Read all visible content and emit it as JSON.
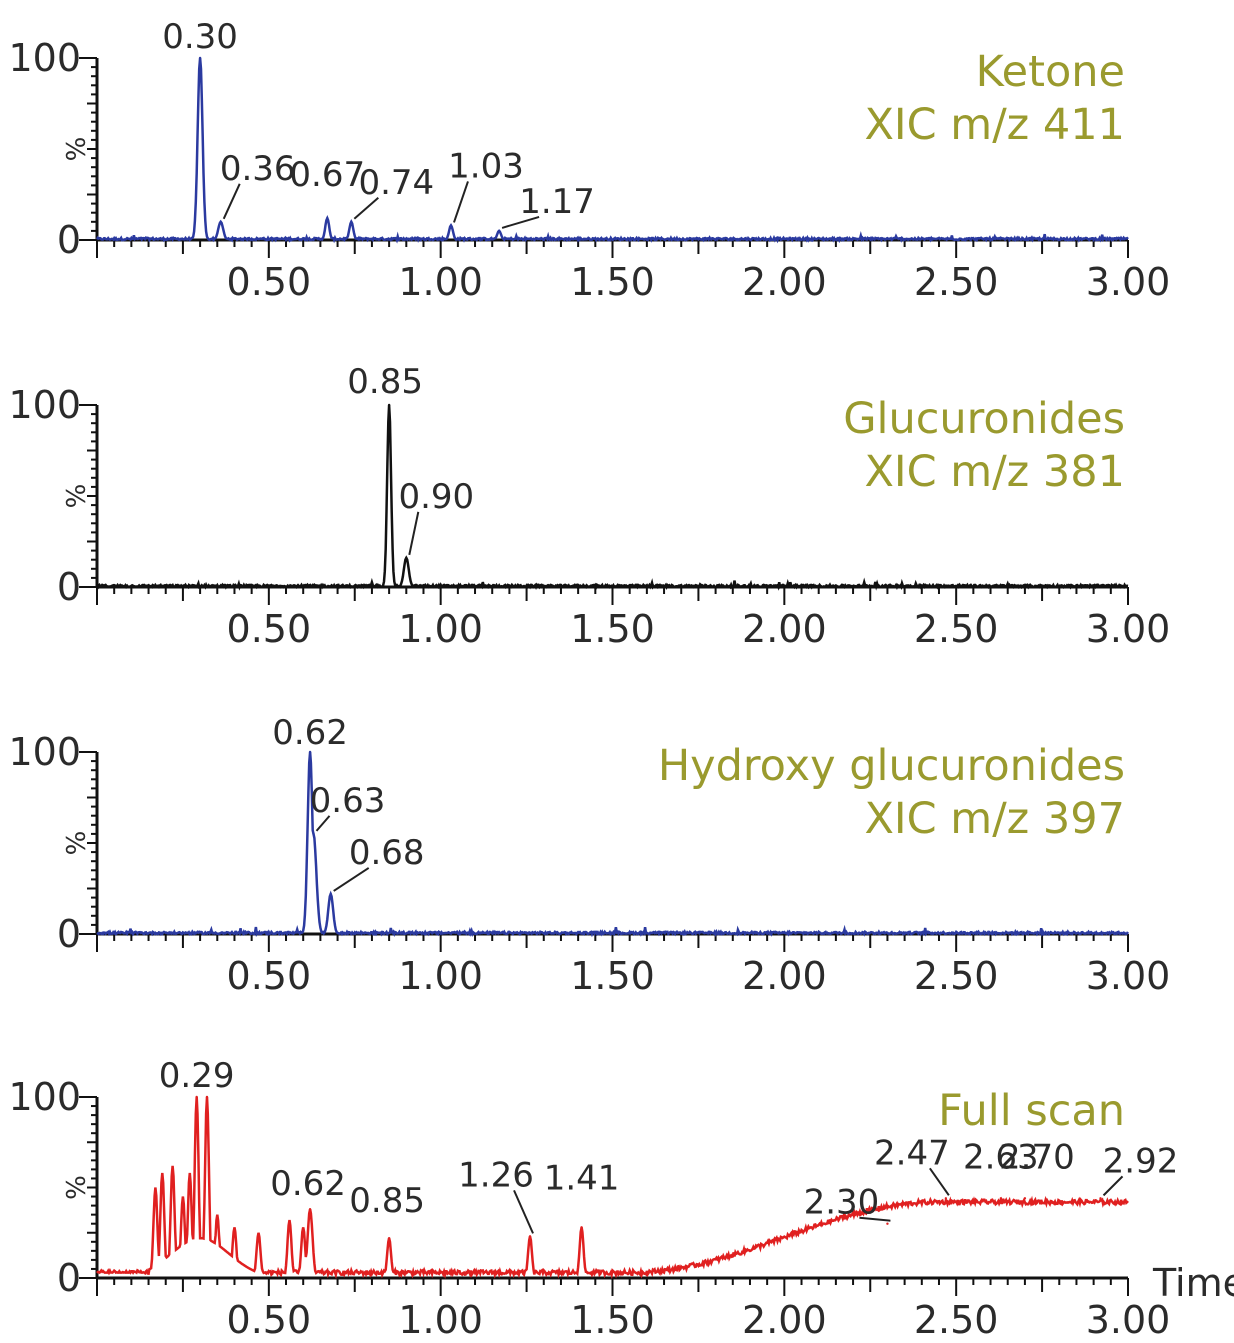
{
  "chart_data": [
    {
      "type": "line",
      "title": "Ketone",
      "subtitle": "XIC m/z 411",
      "color": "#2b3aa0",
      "xlim": [
        0.0,
        3.0
      ],
      "ylim": [
        0,
        100
      ],
      "x_ticks": [
        "0.50",
        "1.00",
        "1.50",
        "2.00",
        "2.50",
        "3.00"
      ],
      "y_ticks": [
        "100",
        "0"
      ],
      "ylabel": "%",
      "xlabel": "",
      "peaks": [
        {
          "x": 0.3,
          "y": 100,
          "width": 0.01,
          "label": "0.30"
        },
        {
          "x": 0.36,
          "y": 10,
          "width": 0.01,
          "label": "0.36"
        },
        {
          "x": 0.67,
          "y": 12,
          "width": 0.008,
          "label": "0.67"
        },
        {
          "x": 0.74,
          "y": 10,
          "width": 0.008,
          "label": "0.74"
        },
        {
          "x": 1.03,
          "y": 8,
          "width": 0.008,
          "label": "1.03"
        },
        {
          "x": 1.17,
          "y": 5,
          "width": 0.008,
          "label": "1.17"
        }
      ]
    },
    {
      "type": "line",
      "title": "Glucuronides",
      "subtitle": "XIC m/z 381",
      "color": "#111111",
      "xlim": [
        0.0,
        3.0
      ],
      "ylim": [
        0,
        100
      ],
      "x_ticks": [
        "0.50",
        "1.00",
        "1.50",
        "2.00",
        "2.50",
        "3.00"
      ],
      "y_ticks": [
        "100",
        "0"
      ],
      "ylabel": "%",
      "xlabel": "",
      "peaks": [
        {
          "x": 0.85,
          "y": 100,
          "width": 0.008,
          "label": "0.85"
        },
        {
          "x": 0.9,
          "y": 16,
          "width": 0.01,
          "label": "0.90"
        }
      ]
    },
    {
      "type": "line",
      "title": "Hydroxy glucuronides",
      "subtitle": "XIC m/z 397",
      "color": "#2b3aa0",
      "xlim": [
        0.0,
        3.0
      ],
      "ylim": [
        0,
        100
      ],
      "x_ticks": [
        "0.50",
        "1.00",
        "1.50",
        "2.00",
        "2.50",
        "3.00"
      ],
      "y_ticks": [
        "100",
        "0"
      ],
      "ylabel": "%",
      "xlabel": "",
      "peaks": [
        {
          "x": 0.62,
          "y": 100,
          "width": 0.01,
          "label": "0.62"
        },
        {
          "x": 0.63,
          "y": 55,
          "width": 0.012,
          "label": "0.63"
        },
        {
          "x": 0.68,
          "y": 22,
          "width": 0.01,
          "label": "0.68"
        }
      ]
    },
    {
      "type": "line",
      "title": "Full scan",
      "subtitle": "",
      "color": "#e02020",
      "xlim": [
        0.0,
        3.0
      ],
      "ylim": [
        0,
        100
      ],
      "x_ticks": [
        "0.50",
        "1.00",
        "1.50",
        "2.00",
        "2.50",
        "3.00"
      ],
      "y_ticks": [
        "100",
        "0"
      ],
      "ylabel": "%",
      "xlabel": "Time",
      "peaks": [
        {
          "x": 0.29,
          "y": 100,
          "width": 0.008,
          "label": "0.29"
        },
        {
          "x": 0.32,
          "y": 100,
          "width": 0.008,
          "label": ""
        },
        {
          "x": 0.62,
          "y": 38,
          "width": 0.01,
          "label": "0.62"
        },
        {
          "x": 0.85,
          "y": 22,
          "width": 0.008,
          "label": "0.85"
        },
        {
          "x": 1.26,
          "y": 23,
          "width": 0.008,
          "label": "1.26"
        },
        {
          "x": 1.41,
          "y": 28,
          "width": 0.008,
          "label": "1.41"
        },
        {
          "x": 2.3,
          "y": 30,
          "width": 0.001,
          "label": "2.30"
        },
        {
          "x": 2.47,
          "y": 44,
          "width": 0.001,
          "label": "2.47"
        },
        {
          "x": 2.63,
          "y": 44,
          "width": 0.001,
          "label": "2.63"
        },
        {
          "x": 2.7,
          "y": 44,
          "width": 0.001,
          "label": "2.70"
        },
        {
          "x": 2.92,
          "y": 44,
          "width": 0.001,
          "label": "2.92"
        }
      ]
    }
  ]
}
